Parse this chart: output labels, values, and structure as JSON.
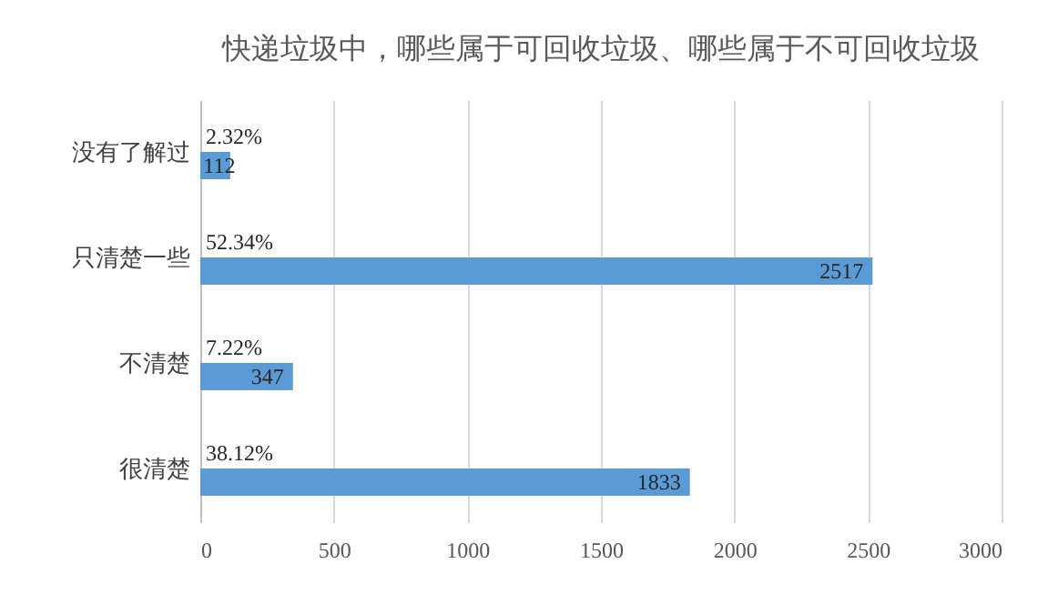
{
  "chart_data": {
    "type": "bar",
    "orientation": "horizontal",
    "title": "快递垃圾中，哪些属于可回收垃圾、哪些属于不可回收垃圾",
    "categories": [
      "没有了解过",
      "只清楚一些",
      "不清楚",
      "很清楚"
    ],
    "values": [
      112,
      2517,
      347,
      1833
    ],
    "color": "#5b9bd5",
    "xlim": [
      0,
      3000
    ],
    "xticks": [
      0,
      500,
      1000,
      1500,
      2000,
      2500,
      3000
    ],
    "grid": "x",
    "data_labels": true,
    "annotations": [
      {
        "text": "2.32%",
        "y": "没有了解过"
      },
      {
        "text": "52.34%",
        "y": "只清楚一些"
      },
      {
        "text": "7.22%",
        "y": "不清楚"
      },
      {
        "text": "38.12%",
        "y": "很清楚"
      }
    ]
  }
}
